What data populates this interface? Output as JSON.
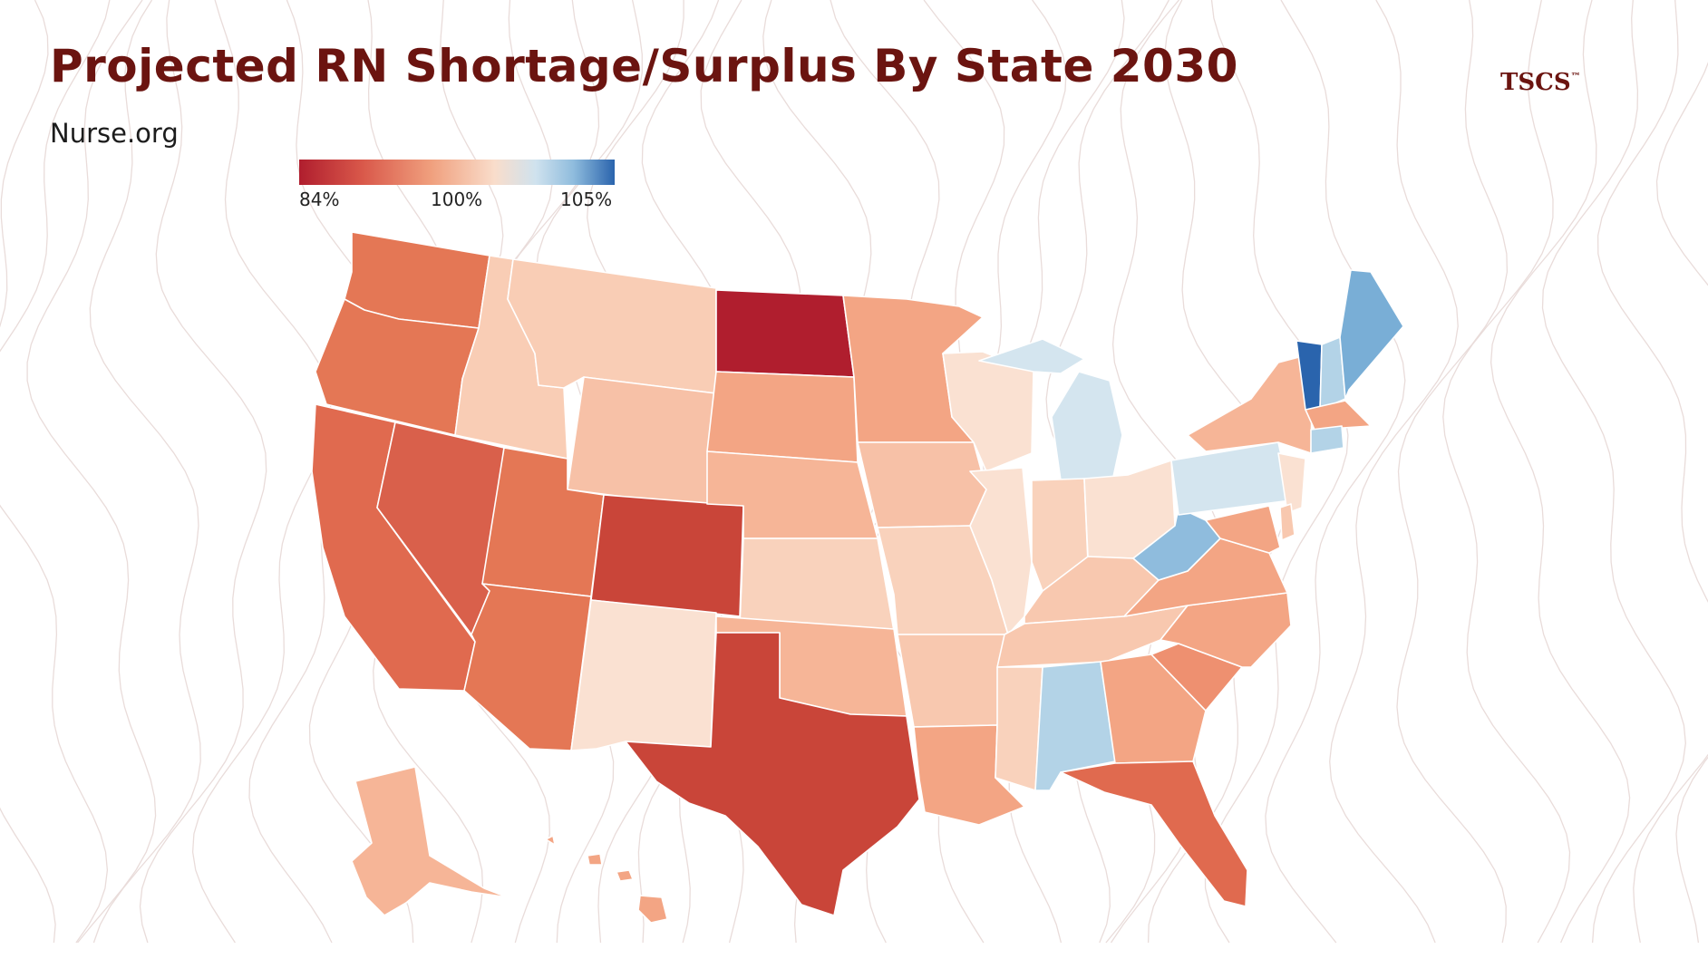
{
  "title": "Projected RN Shortage/Surplus By State 2030",
  "source": "Nurse.org",
  "brand": {
    "name": "TSCS",
    "mark": "™"
  },
  "legend": {
    "min_label": "84%",
    "mid_label": "100%",
    "max_label": "105%"
  },
  "scale_colors": {
    "deep_red": "#b01e2e",
    "red": "#c94539",
    "red_orange": "#e06a4f",
    "orange": "#ec8665",
    "salmon": "#f3a584",
    "peach": "#f8c4aa",
    "light_peach": "#fadfcf",
    "light_blue": "#cfe2ee",
    "blue": "#8fbcdd",
    "dark_blue": "#2a64ad"
  },
  "states": [
    {
      "code": "WA",
      "color": "#e47755"
    },
    {
      "code": "OR",
      "color": "#e47755"
    },
    {
      "code": "CA",
      "color": "#e06a4f"
    },
    {
      "code": "NV",
      "color": "#d9604b"
    },
    {
      "code": "ID",
      "color": "#f9cdb5"
    },
    {
      "code": "MT",
      "color": "#f9cdb5"
    },
    {
      "code": "WY",
      "color": "#f7c1a7"
    },
    {
      "code": "UT",
      "color": "#e47755"
    },
    {
      "code": "AZ",
      "color": "#e47755"
    },
    {
      "code": "CO",
      "color": "#c94539"
    },
    {
      "code": "NM",
      "color": "#fae1d2"
    },
    {
      "code": "ND",
      "color": "#b01e2e"
    },
    {
      "code": "SD",
      "color": "#f3a584"
    },
    {
      "code": "NE",
      "color": "#f6b597"
    },
    {
      "code": "KS",
      "color": "#f9d2bc"
    },
    {
      "code": "OK",
      "color": "#f6b597"
    },
    {
      "code": "TX",
      "color": "#c94539"
    },
    {
      "code": "MN",
      "color": "#f3a584"
    },
    {
      "code": "IA",
      "color": "#f7c1a7"
    },
    {
      "code": "MO",
      "color": "#f9d2bc"
    },
    {
      "code": "AR",
      "color": "#f8c8af"
    },
    {
      "code": "LA",
      "color": "#f3a584"
    },
    {
      "code": "WI",
      "color": "#fae1d2"
    },
    {
      "code": "IL",
      "color": "#fae1d2"
    },
    {
      "code": "MI",
      "color": "#d4e5ef"
    },
    {
      "code": "IN",
      "color": "#f9d2bc"
    },
    {
      "code": "OH",
      "color": "#fae1d2"
    },
    {
      "code": "KY",
      "color": "#f8c8af"
    },
    {
      "code": "TN",
      "color": "#f8c8af"
    },
    {
      "code": "MS",
      "color": "#f9d2bc"
    },
    {
      "code": "AL",
      "color": "#b3d3e7"
    },
    {
      "code": "GA",
      "color": "#f3a584"
    },
    {
      "code": "FL",
      "color": "#e06a4f"
    },
    {
      "code": "SC",
      "color": "#ee9070"
    },
    {
      "code": "NC",
      "color": "#f3a584"
    },
    {
      "code": "VA",
      "color": "#f3a584"
    },
    {
      "code": "WV",
      "color": "#8fbcdd"
    },
    {
      "code": "PA",
      "color": "#d4e5ef"
    },
    {
      "code": "NY",
      "color": "#f6b597"
    },
    {
      "code": "NJ",
      "color": "#fae1d2"
    },
    {
      "code": "VT",
      "color": "#2a64ad"
    },
    {
      "code": "NH",
      "color": "#b3d3e7"
    },
    {
      "code": "ME",
      "color": "#79aed6"
    },
    {
      "code": "MA",
      "color": "#f3a584"
    },
    {
      "code": "CT",
      "color": "#b3d3e7"
    },
    {
      "code": "MD",
      "color": "#f3a584"
    },
    {
      "code": "DE",
      "color": "#f8c8af"
    },
    {
      "code": "AK",
      "color": "#f6b597"
    },
    {
      "code": "HI",
      "color": "#f3a584"
    }
  ]
}
